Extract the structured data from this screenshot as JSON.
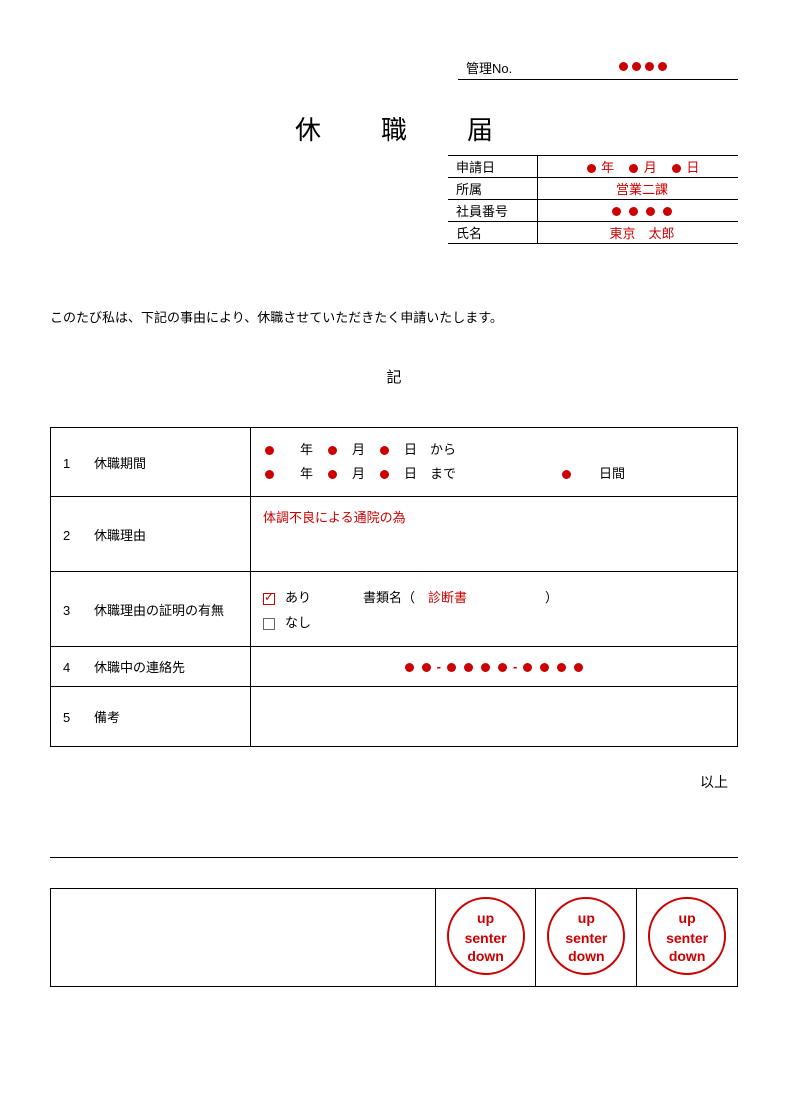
{
  "header": {
    "kanri_label": "管理No.",
    "kanri_dots": 4
  },
  "title": "休職届",
  "info": {
    "rows": [
      {
        "label": "申請日",
        "type": "date",
        "y": "年",
        "m": "月",
        "d": "日"
      },
      {
        "label": "所属",
        "type": "text",
        "value": "営業二課",
        "red": true
      },
      {
        "label": "社員番号",
        "type": "dots",
        "dots": 4
      },
      {
        "label": "氏名",
        "type": "text",
        "value": "東京　太郎",
        "red": true
      }
    ]
  },
  "intro": "このたび私は、下記の事由により、休職させていただきたく申請いたします。",
  "ki": "記",
  "main": {
    "rows": [
      {
        "num": "1",
        "label": "休職期間",
        "type": "period",
        "units": {
          "y": "年",
          "m": "月",
          "d": "日",
          "from": "から",
          "to": "まで",
          "days": "日間"
        }
      },
      {
        "num": "2",
        "label": "休職理由",
        "type": "reason",
        "value": "体調不良による通院の為"
      },
      {
        "num": "3",
        "label": "休職理由の証明の有無",
        "type": "proof",
        "yes": "あり",
        "no": "なし",
        "doc_label": "書類名（",
        "doc_value": "診断書",
        "doc_close": "）"
      },
      {
        "num": "4",
        "label": "休職中の連絡先",
        "type": "contact",
        "groups": [
          2,
          4,
          4
        ]
      },
      {
        "num": "5",
        "label": "備考",
        "type": "blank"
      }
    ]
  },
  "ijo": "以上",
  "stamps": {
    "count": 3,
    "lines": {
      "up": "up",
      "mid": "senter",
      "down": "down"
    }
  },
  "colors": {
    "red": "#c00",
    "black": "#000"
  }
}
